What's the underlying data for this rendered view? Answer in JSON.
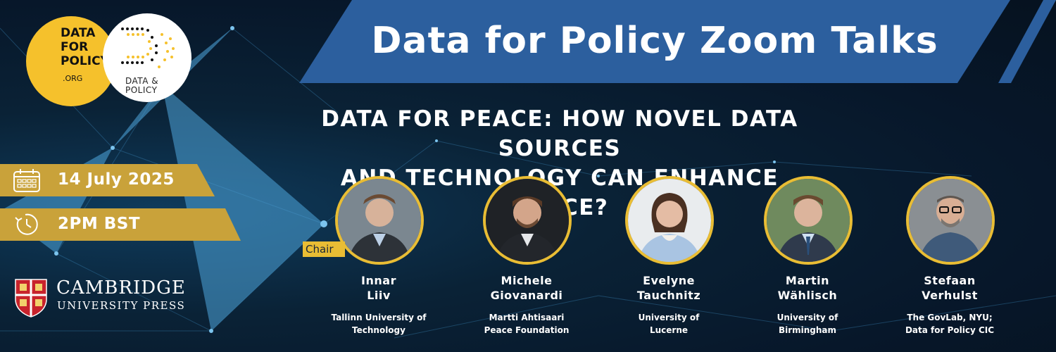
{
  "title": "Data for Policy Zoom Talks",
  "subtitle_line1": "DATA FOR PEACE: HOW NOVEL DATA SOURCES",
  "subtitle_line2": "AND TECHNOLOGY CAN ENHANCE PEACE?",
  "logo_data_for_policy": {
    "line1": "DATA",
    "line2": "FOR",
    "line3": "POLICY",
    "line4": ".ORG"
  },
  "logo_data_and_policy": {
    "line1": "DATA &",
    "line2": "POLICY"
  },
  "event": {
    "date": "14 July 2025",
    "time": "2PM BST"
  },
  "publisher": {
    "line1": "CAMBRIDGE",
    "line2": "UNIVERSITY PRESS"
  },
  "chair_label": "Chair",
  "speakers": [
    {
      "name_line1": "Innar",
      "name_line2": "Liiv",
      "aff_line1": "Tallinn University of",
      "aff_line2": "Technology"
    },
    {
      "name_line1": "Michele",
      "name_line2": "Giovanardi",
      "aff_line1": "Martti Ahtisaari",
      "aff_line2": "Peace Foundation"
    },
    {
      "name_line1": "Evelyne",
      "name_line2": "Tauchnitz",
      "aff_line1": "University of",
      "aff_line2": "Lucerne"
    },
    {
      "name_line1": "Martin",
      "name_line2": "Wählisch",
      "aff_line1": "University of",
      "aff_line2": "Birmingham"
    },
    {
      "name_line1": "Stefaan",
      "name_line2": "Verhulst",
      "aff_line1": "The GovLab, NYU;",
      "aff_line2": "Data for Policy CIC"
    }
  ],
  "colors": {
    "ribbon": "#2c5f9e",
    "gold": "#c9a23a",
    "ring": "#e9bd34",
    "logo_yellow": "#f5c12c"
  }
}
